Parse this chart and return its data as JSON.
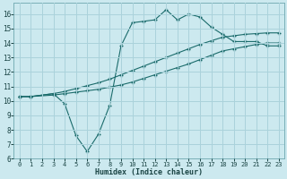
{
  "xlabel": "Humidex (Indice chaleur)",
  "bg_color": "#cce9ef",
  "grid_color": "#aad2db",
  "line_color": "#1a6b6b",
  "xlim": [
    -0.5,
    23.5
  ],
  "ylim": [
    6,
    16.8
  ],
  "xticks": [
    0,
    1,
    2,
    3,
    4,
    5,
    6,
    7,
    8,
    9,
    10,
    11,
    12,
    13,
    14,
    15,
    16,
    17,
    18,
    19,
    20,
    21,
    22,
    23
  ],
  "yticks": [
    6,
    7,
    8,
    9,
    10,
    11,
    12,
    13,
    14,
    15,
    16
  ],
  "line1_x": [
    0,
    1,
    3,
    4,
    5,
    6,
    7,
    8,
    9,
    10,
    11,
    12,
    13,
    14,
    15,
    16,
    17,
    18,
    19,
    20,
    21,
    22,
    23
  ],
  "line1_y": [
    10.3,
    10.3,
    10.5,
    9.8,
    7.6,
    6.5,
    7.7,
    9.7,
    13.8,
    15.4,
    15.5,
    15.6,
    16.3,
    15.6,
    16.0,
    15.8,
    15.1,
    14.6,
    14.1,
    14.1,
    14.1,
    13.8,
    13.8
  ],
  "line2_x": [
    0,
    1,
    3,
    4,
    5,
    6,
    7,
    8,
    9,
    10,
    11,
    12,
    13,
    14,
    15,
    16,
    17,
    18,
    19,
    20,
    21,
    22,
    23
  ],
  "line2_y": [
    10.3,
    10.3,
    10.4,
    10.5,
    10.6,
    10.7,
    10.8,
    10.95,
    11.1,
    11.3,
    11.55,
    11.8,
    12.05,
    12.3,
    12.55,
    12.85,
    13.15,
    13.45,
    13.6,
    13.75,
    13.9,
    14.0,
    14.0
  ],
  "line3_x": [
    0,
    1,
    3,
    4,
    5,
    6,
    7,
    8,
    9,
    10,
    11,
    12,
    13,
    14,
    15,
    16,
    17,
    18,
    19,
    20,
    21,
    22,
    23
  ],
  "line3_y": [
    10.3,
    10.3,
    10.5,
    10.65,
    10.85,
    11.05,
    11.25,
    11.5,
    11.8,
    12.1,
    12.4,
    12.7,
    13.0,
    13.3,
    13.6,
    13.9,
    14.15,
    14.4,
    14.5,
    14.6,
    14.65,
    14.7,
    14.7
  ]
}
